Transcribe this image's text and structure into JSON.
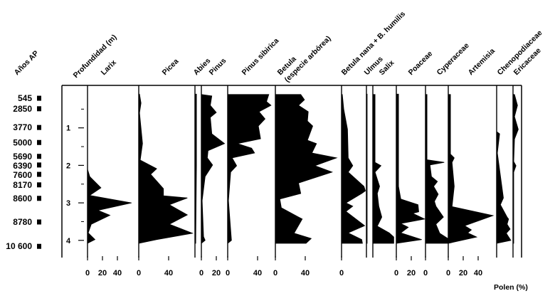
{
  "chart_data": {
    "type": "area",
    "title": "",
    "xlabel": "Polen (%)",
    "ylabel": "Profundidad (m)",
    "age_label": "Años AP",
    "depth_ticks": [
      "1",
      "2",
      "3",
      "4"
    ],
    "depth_range_m": [
      0,
      4.1
    ],
    "ages": [
      {
        "label": "545",
        "depth": 0.21
      },
      {
        "label": "2850",
        "depth": 0.49
      },
      {
        "label": "3770",
        "depth": 0.99
      },
      {
        "label": "5000",
        "depth": 1.39
      },
      {
        "label": "5690",
        "depth": 1.76
      },
      {
        "label": "6390",
        "depth": 1.99
      },
      {
        "label": "7600",
        "depth": 2.24
      },
      {
        "label": "8170",
        "depth": 2.52
      },
      {
        "label": "8600",
        "depth": 2.88
      },
      {
        "label": "8780",
        "depth": 3.51
      },
      {
        "label": "10 600",
        "depth": 4.16
      }
    ],
    "series": [
      {
        "name": "Larix",
        "ticks": [
          "0",
          "20",
          "40"
        ],
        "points": [
          [
            2.1,
            0
          ],
          [
            2.3,
            3
          ],
          [
            2.6,
            18
          ],
          [
            2.8,
            3
          ],
          [
            3.0,
            59
          ],
          [
            3.2,
            14
          ],
          [
            3.33,
            30
          ],
          [
            3.57,
            5
          ],
          [
            3.8,
            1
          ],
          [
            3.98,
            10
          ],
          [
            4.08,
            0
          ]
        ]
      },
      {
        "name": "Picea",
        "ticks": [
          "0",
          "40"
        ],
        "points": [
          [
            0.1,
            1
          ],
          [
            0.34,
            3
          ],
          [
            0.6,
            1
          ],
          [
            1.42,
            5
          ],
          [
            1.86,
            2
          ],
          [
            2.09,
            24
          ],
          [
            2.24,
            16
          ],
          [
            2.62,
            33
          ],
          [
            2.81,
            33
          ],
          [
            2.87,
            65
          ],
          [
            3.05,
            41
          ],
          [
            3.32,
            65
          ],
          [
            3.57,
            41
          ],
          [
            3.81,
            72
          ],
          [
            3.98,
            24
          ],
          [
            4.08,
            0
          ]
        ]
      },
      {
        "name": "Abies",
        "ticks": [],
        "points": [
          [
            0.1,
            2
          ],
          [
            2.0,
            2
          ],
          [
            4.08,
            1
          ]
        ]
      },
      {
        "name": "Pinus",
        "ticks": [
          "0",
          "20"
        ],
        "points": [
          [
            0.11,
            0
          ],
          [
            0.15,
            14
          ],
          [
            0.4,
            12
          ],
          [
            0.59,
            20
          ],
          [
            0.72,
            12
          ],
          [
            1.16,
            14
          ],
          [
            1.42,
            31
          ],
          [
            1.61,
            9
          ],
          [
            1.8,
            8
          ],
          [
            1.99,
            15
          ],
          [
            2.3,
            5
          ],
          [
            2.94,
            1
          ],
          [
            3.9,
            3
          ],
          [
            4.0,
            5
          ],
          [
            4.08,
            0
          ]
        ]
      },
      {
        "name": "Pinus sibirica",
        "ticks": [
          "0",
          "40"
        ],
        "points": [
          [
            0.11,
            55
          ],
          [
            0.3,
            52
          ],
          [
            0.4,
            58
          ],
          [
            0.57,
            42
          ],
          [
            0.76,
            50
          ],
          [
            0.95,
            41
          ],
          [
            1.29,
            44
          ],
          [
            1.42,
            13
          ],
          [
            1.54,
            32
          ],
          [
            1.67,
            36
          ],
          [
            1.8,
            6
          ],
          [
            2.01,
            12
          ],
          [
            2.18,
            4
          ],
          [
            2.94,
            1
          ],
          [
            4.0,
            5
          ],
          [
            4.08,
            0
          ]
        ]
      },
      {
        "name": "Betula",
        "name2": "(especie arbórea)",
        "ticks": [
          "0",
          "40"
        ],
        "points": [
          [
            0.11,
            34
          ],
          [
            0.25,
            39
          ],
          [
            0.4,
            31
          ],
          [
            0.57,
            44
          ],
          [
            0.82,
            43
          ],
          [
            0.95,
            50
          ],
          [
            1.33,
            43
          ],
          [
            1.42,
            55
          ],
          [
            1.67,
            49
          ],
          [
            1.8,
            82
          ],
          [
            2.01,
            53
          ],
          [
            2.18,
            76
          ],
          [
            2.47,
            31
          ],
          [
            2.75,
            34
          ],
          [
            2.9,
            6
          ],
          [
            3.13,
            8
          ],
          [
            3.38,
            31
          ],
          [
            3.43,
            36
          ],
          [
            3.81,
            25
          ],
          [
            3.95,
            48
          ],
          [
            4.08,
            41
          ]
        ]
      },
      {
        "name": "Betula nana + B. humilis",
        "ticks": [
          "0"
        ],
        "points": [
          [
            0.11,
            1
          ],
          [
            0.5,
            3
          ],
          [
            1.04,
            8
          ],
          [
            1.8,
            9
          ],
          [
            2.01,
            15
          ],
          [
            2.18,
            9
          ],
          [
            2.56,
            30
          ],
          [
            2.68,
            32
          ],
          [
            2.75,
            27
          ],
          [
            3.0,
            6
          ],
          [
            3.09,
            15
          ],
          [
            3.23,
            6
          ],
          [
            3.61,
            31
          ],
          [
            3.8,
            9
          ],
          [
            3.98,
            27
          ],
          [
            4.08,
            28
          ]
        ]
      },
      {
        "name": "Ulmus",
        "ticks": [],
        "points": [
          [
            0.1,
            1
          ],
          [
            4.08,
            1
          ]
        ]
      },
      {
        "name": "Salix",
        "ticks": [],
        "points": [
          [
            0.11,
            3
          ],
          [
            1.92,
            3
          ],
          [
            2.01,
            11
          ],
          [
            2.18,
            3
          ],
          [
            2.56,
            9
          ],
          [
            2.75,
            6
          ],
          [
            3.09,
            8
          ],
          [
            3.38,
            12
          ],
          [
            3.62,
            6
          ],
          [
            3.8,
            22
          ],
          [
            3.91,
            28
          ],
          [
            4.08,
            28
          ]
        ]
      },
      {
        "name": "Poaceae",
        "ticks": [
          "0",
          "20"
        ],
        "points": [
          [
            0.1,
            3
          ],
          [
            2.56,
            3
          ],
          [
            2.9,
            6
          ],
          [
            3.05,
            29
          ],
          [
            3.24,
            30
          ],
          [
            3.28,
            22
          ],
          [
            3.43,
            38
          ],
          [
            3.55,
            6
          ],
          [
            3.65,
            16
          ],
          [
            3.8,
            6
          ],
          [
            3.98,
            34
          ],
          [
            4.08,
            0
          ]
        ]
      },
      {
        "name": "Cyperaceae",
        "ticks": [
          "0"
        ],
        "points": [
          [
            0.11,
            2
          ],
          [
            1.85,
            2
          ],
          [
            1.92,
            25
          ],
          [
            1.99,
            6
          ],
          [
            2.3,
            8
          ],
          [
            2.43,
            16
          ],
          [
            2.56,
            11
          ],
          [
            2.77,
            17
          ],
          [
            2.96,
            12
          ],
          [
            3.09,
            14
          ],
          [
            3.38,
            24
          ],
          [
            3.57,
            14
          ],
          [
            3.81,
            19
          ],
          [
            3.95,
            30
          ],
          [
            4.08,
            30
          ]
        ]
      },
      {
        "name": "Artemisia",
        "ticks": [
          "0",
          "20",
          "40"
        ],
        "points": [
          [
            0.11,
            3
          ],
          [
            1.7,
            3
          ],
          [
            1.8,
            8
          ],
          [
            1.92,
            5
          ],
          [
            2.56,
            8
          ],
          [
            3.1,
            5
          ],
          [
            3.34,
            60
          ],
          [
            3.61,
            22
          ],
          [
            3.72,
            31
          ],
          [
            3.8,
            26
          ],
          [
            3.91,
            38
          ],
          [
            4.08,
            0
          ]
        ]
      },
      {
        "name": "Chenopodiaceae",
        "ticks": [],
        "points": [
          [
            1.1,
            0
          ],
          [
            1.16,
            4
          ],
          [
            1.67,
            1
          ],
          [
            2.87,
            9
          ],
          [
            3.05,
            5
          ],
          [
            3.38,
            14
          ],
          [
            3.43,
            16
          ],
          [
            3.57,
            14
          ],
          [
            3.7,
            18
          ],
          [
            3.81,
            13
          ],
          [
            4.0,
            19
          ],
          [
            4.08,
            0
          ]
        ]
      },
      {
        "name": "Ericaceae",
        "ticks": [],
        "points": [
          [
            0.11,
            2
          ],
          [
            0.4,
            6
          ],
          [
            0.7,
            2
          ],
          [
            1.04,
            7
          ],
          [
            1.3,
            2
          ],
          [
            1.9,
            1
          ],
          [
            2.01,
            4
          ],
          [
            2.18,
            1
          ],
          [
            4.08,
            1
          ]
        ]
      }
    ]
  }
}
